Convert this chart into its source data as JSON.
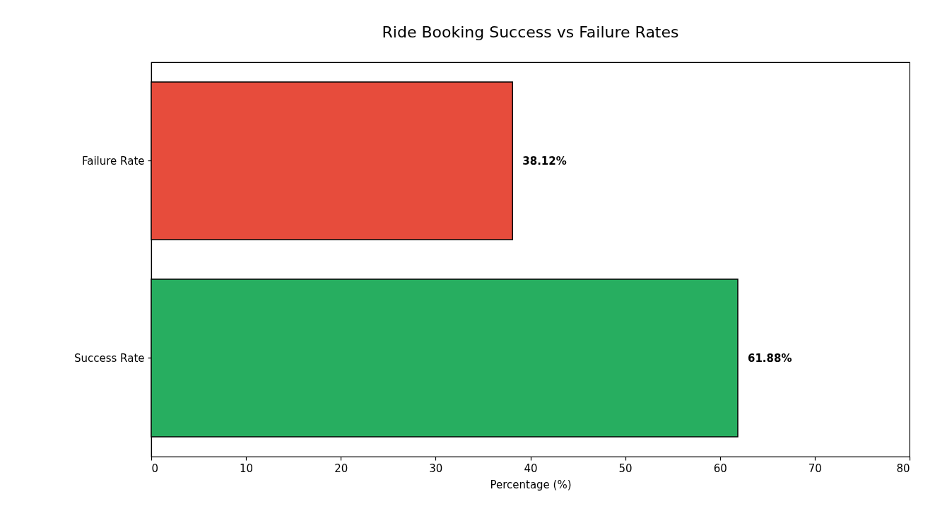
{
  "chart_data": {
    "type": "bar",
    "title": "Ride Booking Success vs Failure Rates",
    "orientation": "horizontal",
    "xlabel": "Percentage (%)",
    "categories": [
      "Failure Rate",
      "Success Rate"
    ],
    "values": [
      38.12,
      61.88
    ],
    "colors": [
      "#e74c3c",
      "#27ae60"
    ],
    "value_labels": [
      "38.12%",
      "61.88%"
    ],
    "xlim": [
      0,
      80
    ],
    "xticks": [
      0,
      10,
      20,
      30,
      40,
      50,
      60,
      70,
      80
    ],
    "grid": false,
    "legend": false
  }
}
